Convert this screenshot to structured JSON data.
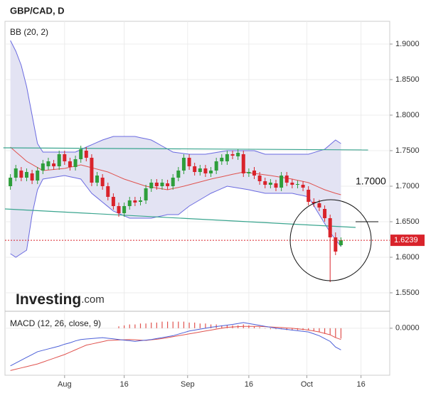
{
  "title": "GBP/CAD, D",
  "indicator_label": "BB (20, 2)",
  "macd_label": "MACD (12, 26, close, 9)",
  "logo": {
    "name": "Investing",
    "suffix": ".com"
  },
  "annotation": "1.7000",
  "chart_data": {
    "type": "candlestick",
    "categories": [
      null,
      null,
      null,
      null,
      null,
      null,
      null,
      null,
      null,
      null,
      null,
      null,
      null,
      null,
      null,
      null,
      null,
      null,
      null,
      null,
      null,
      null,
      null,
      null,
      null,
      null,
      null,
      null,
      null,
      null,
      null,
      null,
      null,
      null,
      null,
      null,
      null,
      null,
      null,
      null,
      null,
      null,
      null,
      null,
      null,
      null,
      null,
      null,
      null,
      null,
      null,
      null,
      null,
      null,
      null,
      null,
      null,
      null,
      null,
      null,
      null,
      null
    ],
    "open": [
      1.7,
      1.712,
      1.722,
      1.712,
      1.718,
      1.708,
      1.722,
      1.728,
      1.732,
      1.728,
      1.745,
      1.735,
      1.727,
      1.738,
      1.75,
      1.74,
      1.705,
      1.712,
      1.7,
      1.685,
      1.672,
      1.662,
      1.672,
      1.68,
      1.678,
      1.68,
      1.697,
      1.705,
      1.7,
      1.704,
      1.7,
      1.712,
      1.722,
      1.74,
      1.728,
      1.72,
      1.725,
      1.718,
      1.722,
      1.735,
      1.735,
      1.745,
      1.742,
      1.745,
      1.718,
      1.722,
      1.715,
      1.707,
      1.702,
      1.704,
      1.698,
      1.715,
      1.705,
      1.702,
      1.702,
      1.695,
      1.678,
      1.676,
      1.668,
      1.655,
      1.628,
      1.617
    ],
    "high": [
      1.717,
      1.73,
      1.727,
      1.725,
      1.723,
      1.727,
      1.737,
      1.74,
      1.737,
      1.75,
      1.75,
      1.74,
      1.743,
      1.757,
      1.755,
      1.745,
      1.72,
      1.717,
      1.705,
      1.69,
      1.677,
      1.677,
      1.685,
      1.685,
      1.685,
      1.702,
      1.71,
      1.71,
      1.71,
      1.709,
      1.717,
      1.727,
      1.745,
      1.745,
      1.733,
      1.73,
      1.73,
      1.727,
      1.74,
      1.745,
      1.75,
      1.75,
      1.752,
      1.75,
      1.725,
      1.727,
      1.72,
      1.712,
      1.71,
      1.709,
      1.72,
      1.72,
      1.71,
      1.708,
      1.707,
      1.7,
      1.683,
      1.681,
      1.673,
      1.66,
      1.635,
      1.628
    ],
    "low": [
      1.695,
      1.707,
      1.707,
      1.707,
      1.703,
      1.703,
      1.717,
      1.723,
      1.723,
      1.723,
      1.73,
      1.722,
      1.722,
      1.733,
      1.735,
      1.7,
      1.7,
      1.695,
      1.68,
      1.667,
      1.657,
      1.657,
      1.667,
      1.672,
      1.673,
      1.675,
      1.692,
      1.695,
      1.695,
      1.695,
      1.695,
      1.707,
      1.717,
      1.723,
      1.715,
      1.715,
      1.713,
      1.713,
      1.717,
      1.73,
      1.73,
      1.738,
      1.737,
      1.713,
      1.713,
      1.71,
      1.702,
      1.697,
      1.697,
      1.693,
      1.693,
      1.7,
      1.697,
      1.697,
      1.693,
      1.673,
      1.671,
      1.665,
      1.65,
      1.565,
      1.603,
      1.615
    ],
    "close": [
      1.712,
      1.725,
      1.712,
      1.72,
      1.708,
      1.722,
      1.732,
      1.735,
      1.728,
      1.745,
      1.735,
      1.727,
      1.738,
      1.752,
      1.74,
      1.705,
      1.715,
      1.7,
      1.685,
      1.672,
      1.662,
      1.672,
      1.68,
      1.677,
      1.68,
      1.697,
      1.705,
      1.7,
      1.705,
      1.7,
      1.712,
      1.722,
      1.74,
      1.728,
      1.72,
      1.725,
      1.718,
      1.722,
      1.735,
      1.74,
      1.745,
      1.743,
      1.747,
      1.718,
      1.72,
      1.715,
      1.707,
      1.702,
      1.705,
      1.698,
      1.715,
      1.705,
      1.702,
      1.703,
      1.698,
      1.678,
      1.676,
      1.67,
      1.655,
      1.628,
      1.608,
      1.624
    ],
    "up_color": "#2e9e3b",
    "down_color": "#d9232b",
    "bollinger": {
      "upper": [
        1.905,
        1.89,
        1.87,
        1.84,
        1.8,
        1.76,
        1.748,
        1.748,
        1.748,
        1.748,
        1.748,
        1.748,
        1.748,
        1.7515,
        1.755,
        1.7583,
        1.7617,
        1.765,
        1.7675,
        1.77,
        1.77,
        1.77,
        1.77,
        1.77,
        1.7683,
        1.7667,
        1.765,
        1.7608,
        1.7565,
        1.7523,
        1.748,
        1.747,
        1.746,
        1.745,
        1.745,
        1.745,
        1.745,
        1.7463,
        1.7475,
        1.7488,
        1.75,
        1.75,
        1.75,
        1.75,
        1.75,
        1.75,
        1.7475,
        1.745,
        1.745,
        1.745,
        1.745,
        1.745,
        1.745,
        1.745,
        1.745,
        1.745,
        1.7473,
        1.7497,
        1.752,
        1.7585,
        1.765,
        1.76
      ],
      "middle": [
        1.755,
        1.7483,
        1.7417,
        1.735,
        1.7307,
        1.7263,
        1.722,
        1.7228,
        1.7235,
        1.7243,
        1.725,
        1.7267,
        1.7283,
        1.73,
        1.728,
        1.726,
        1.724,
        1.722,
        1.72,
        1.7167,
        1.7133,
        1.71,
        1.7075,
        1.705,
        1.7025,
        1.7,
        1.6988,
        1.6975,
        1.6963,
        1.695,
        1.6967,
        1.6983,
        1.7,
        1.702,
        1.704,
        1.706,
        1.708,
        1.71,
        1.7117,
        1.7133,
        1.715,
        1.7167,
        1.7183,
        1.72,
        1.719,
        1.718,
        1.717,
        1.716,
        1.715,
        1.7138,
        1.7125,
        1.7113,
        1.71,
        1.7083,
        1.7067,
        1.705,
        1.7017,
        1.6983,
        1.695,
        1.6925,
        1.69,
        1.688
      ],
      "lower": [
        1.605,
        1.6,
        1.605,
        1.61,
        1.66,
        1.695,
        1.71,
        1.7113,
        1.7125,
        1.7138,
        1.715,
        1.7133,
        1.7117,
        1.71,
        1.7,
        1.69,
        1.6838,
        1.6775,
        1.6713,
        1.665,
        1.6617,
        1.6583,
        1.655,
        1.655,
        1.655,
        1.655,
        1.655,
        1.6567,
        1.6583,
        1.66,
        1.66,
        1.66,
        1.666,
        1.672,
        1.6765,
        1.681,
        1.6855,
        1.69,
        1.6933,
        1.6967,
        1.7,
        1.6988,
        1.6975,
        1.6963,
        1.695,
        1.6933,
        1.6917,
        1.69,
        1.69,
        1.69,
        1.69,
        1.69,
        1.69,
        1.6883,
        1.6867,
        1.685,
        1.6725,
        1.66,
        1.6475,
        1.635,
        1.625,
        1.615
      ],
      "band_color": "#6a6ae0",
      "middle_color": "#e0534f",
      "fill": "#e3e3f3"
    },
    "trendlines": [
      {
        "x": [
          -1.3,
          66
        ],
        "y": [
          1.754,
          1.751
        ]
      },
      {
        "x": [
          -1,
          63.7
        ],
        "y": [
          1.668,
          1.642
        ]
      }
    ],
    "trendline_color": "#3aa58f",
    "last_price": 1.6239,
    "last_price_color": "#d9232b",
    "xlim": [
      -1,
      70
    ],
    "xticks": [
      {
        "value": 10,
        "label": "Aug"
      },
      {
        "value": 21,
        "label": "16"
      },
      {
        "value": 32.7,
        "label": "Sep"
      },
      {
        "value": 44,
        "label": "16"
      },
      {
        "value": 54.7,
        "label": "Oct"
      },
      {
        "value": 64.7,
        "label": "16"
      }
    ],
    "ylim": [
      1.525,
      1.932
    ],
    "yticks": [
      {
        "value": 1.55,
        "label": "1.5500"
      },
      {
        "value": 1.6,
        "label": "1.6000"
      },
      {
        "value": 1.65,
        "label": "1.6500"
      },
      {
        "value": 1.7,
        "label": "1.7000"
      },
      {
        "value": 1.75,
        "label": "1.7500"
      },
      {
        "value": 1.8,
        "label": "1.8000"
      },
      {
        "value": 1.85,
        "label": "1.8500"
      },
      {
        "value": 1.9,
        "label": "1.9000"
      }
    ],
    "grid": true,
    "macd": {
      "ylim": [
        -0.05,
        0.0165
      ],
      "yticks": [
        {
          "value": 0,
          "label": "0.0000"
        }
      ],
      "macd": [
        -0.04,
        -0.037,
        -0.034,
        -0.031,
        -0.028,
        -0.025,
        -0.0235,
        -0.022,
        -0.0205,
        -0.019,
        -0.017,
        -0.0155,
        -0.0135,
        -0.012,
        -0.0115,
        -0.011,
        -0.0105,
        -0.01,
        -0.0107,
        -0.0113,
        -0.012,
        -0.0127,
        -0.0133,
        -0.014,
        -0.0133,
        -0.0127,
        -0.012,
        -0.011,
        -0.01,
        -0.009,
        -0.008,
        -0.0063,
        -0.0047,
        -0.003,
        -0.002,
        -0.001,
        0.0,
        0.001,
        0.0018,
        0.0025,
        0.0033,
        0.004,
        0.005,
        0.006,
        0.005,
        0.004,
        0.003,
        0.002,
        0.001,
        0.0,
        -0.0007,
        -0.0013,
        -0.002,
        -0.0027,
        -0.0033,
        -0.004,
        -0.006,
        -0.008,
        -0.011,
        -0.014,
        -0.02,
        -0.023
      ],
      "signal": [
        -0.045,
        -0.0436,
        -0.0422,
        -0.0408,
        -0.0394,
        -0.038,
        -0.036,
        -0.034,
        -0.032,
        -0.03,
        -0.028,
        -0.0255,
        -0.023,
        -0.0205,
        -0.018,
        -0.0168,
        -0.0155,
        -0.0143,
        -0.013,
        -0.0128,
        -0.0125,
        -0.0123,
        -0.012,
        -0.0123,
        -0.0127,
        -0.013,
        -0.0123,
        -0.0117,
        -0.011,
        -0.01,
        -0.009,
        -0.008,
        -0.007,
        -0.006,
        -0.005,
        -0.004,
        -0.003,
        -0.002,
        -0.001,
        0.0,
        0.001,
        0.0013,
        0.0017,
        0.002,
        0.002,
        0.002,
        0.002,
        0.0017,
        0.0013,
        0.001,
        0.0007,
        0.0003,
        0.0,
        -0.0007,
        -0.0013,
        -0.002,
        -0.003,
        -0.004,
        -0.0055,
        -0.007,
        -0.01,
        -0.012
      ],
      "histogram": [
        null,
        null,
        null,
        null,
        null,
        null,
        null,
        null,
        null,
        null,
        null,
        null,
        null,
        null,
        null,
        null,
        null,
        null,
        null,
        null,
        0.002,
        0.003,
        0.004,
        0.004,
        0.005,
        0.005,
        0.006,
        0.006,
        0.007,
        0.007,
        0.007,
        0.007,
        0.007,
        0.006,
        0.006,
        0.005,
        0.005,
        0.004,
        0.004,
        0.003,
        0.003,
        0.003,
        0.003,
        0.004,
        0.003,
        0.002,
        0.001,
        0.0,
        -0.001,
        -0.001,
        -0.001,
        -0.002,
        -0.002,
        -0.002,
        -0.002,
        -0.002,
        -0.003,
        -0.004,
        -0.006,
        -0.007,
        -0.01,
        -0.011
      ],
      "macd_color": "#4b5fd8",
      "signal_color": "#e0534f",
      "histogram_color": "#e0534f"
    }
  }
}
